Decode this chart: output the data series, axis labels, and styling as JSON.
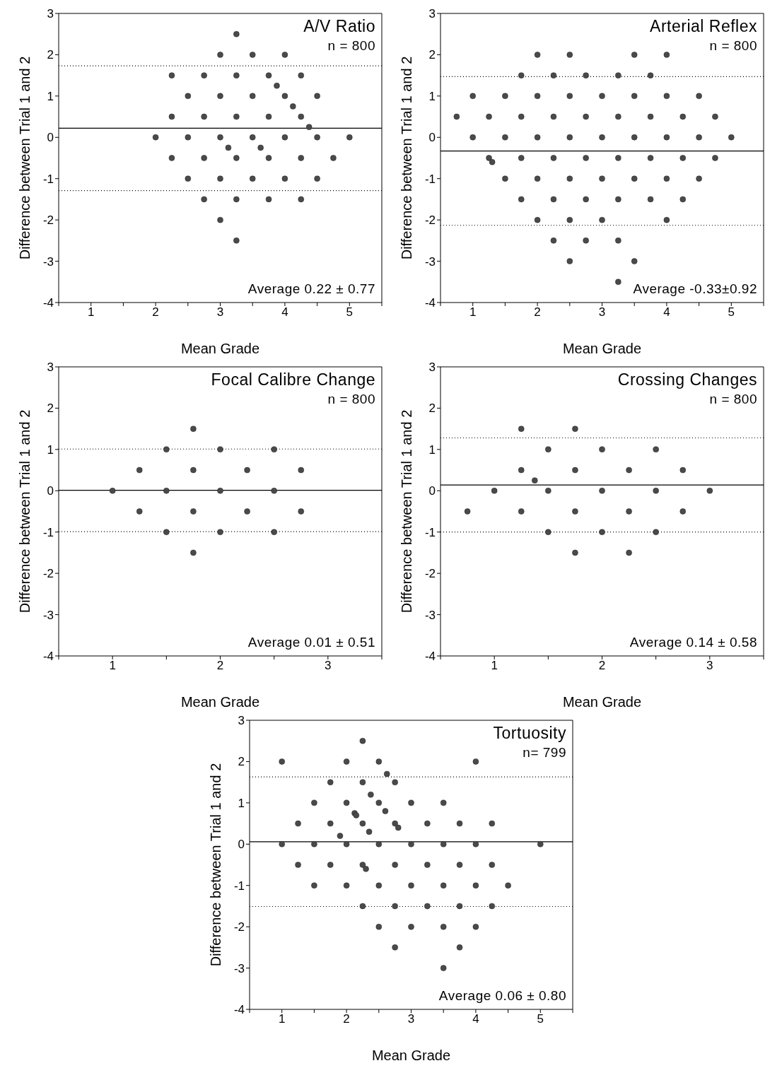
{
  "chart_data": [
    {
      "type": "scatter",
      "title": "A/V Ratio",
      "xlabel": "Mean Grade",
      "ylabel": "Difference between Trial 1 and 2",
      "annotations": [
        "n = 800",
        "Average 0.22 ± 0.77"
      ],
      "marker": "circle",
      "grid": false,
      "legend": false,
      "xlim": [
        0.5,
        5.5
      ],
      "xticks": [
        {
          "value": 0.5,
          "label": null
        },
        1,
        {
          "value": 1.5,
          "label": null
        },
        2,
        {
          "value": 2.5,
          "label": null
        },
        3,
        {
          "value": 3.5,
          "label": null
        },
        4,
        {
          "value": 4.5,
          "label": null
        },
        5,
        {
          "value": 5.5,
          "label": null
        }
      ],
      "ylim": [
        -4,
        3
      ],
      "yticks": [
        -4,
        -3,
        -2,
        -1,
        0,
        1,
        2,
        3
      ],
      "ref_lines": [
        {
          "axis": "y",
          "value": 0.22,
          "line_style": "solid",
          "color": "#000000"
        },
        {
          "axis": "y",
          "value": 1.73,
          "line_style": "dotted",
          "color": "#000000"
        },
        {
          "axis": "y",
          "value": -1.29,
          "line_style": "dotted",
          "color": "#000000"
        }
      ],
      "series": [
        {
          "color": "#4a4a4a",
          "x": [
            3.25,
            3,
            3.5,
            4,
            2.25,
            2.75,
            3.25,
            3.75,
            4.25,
            3.875,
            2.5,
            3,
            3.5,
            4,
            4.5,
            4.125,
            2.25,
            2.75,
            3.25,
            3.75,
            4.25,
            4.375,
            2,
            2.5,
            3,
            3.5,
            4,
            4.5,
            5,
            3.125,
            3.625,
            2.25,
            2.75,
            3.25,
            3.75,
            4.25,
            4.75,
            2.5,
            3,
            3.5,
            4,
            4.5,
            2.75,
            3.25,
            3.75,
            4.25,
            3,
            3.25
          ],
          "values": [
            2.5,
            2,
            2,
            2,
            1.5,
            1.5,
            1.5,
            1.5,
            1.5,
            1.25,
            1,
            1,
            1,
            1,
            1,
            0.75,
            0.5,
            0.5,
            0.5,
            0.5,
            0.5,
            0.25,
            0,
            0,
            0,
            0,
            0,
            0,
            0,
            -0.25,
            -0.25,
            -0.5,
            -0.5,
            -0.5,
            -0.5,
            -0.5,
            -0.5,
            -1,
            -1,
            -1,
            -1,
            -1,
            -1.5,
            -1.5,
            -1.5,
            -1.5,
            -2,
            -2.5
          ]
        }
      ]
    },
    {
      "type": "scatter",
      "title": "Arterial Reflex",
      "xlabel": "Mean Grade",
      "ylabel": "Difference between Trial 1 and 2",
      "annotations": [
        "n = 800",
        "Average -0.33±0.92"
      ],
      "marker": "circle",
      "grid": false,
      "legend": false,
      "xlim": [
        0.5,
        5.5
      ],
      "xticks": [
        {
          "value": 0.5,
          "label": null
        },
        1,
        {
          "value": 1.5,
          "label": null
        },
        2,
        {
          "value": 2.5,
          "label": null
        },
        3,
        {
          "value": 3.5,
          "label": null
        },
        4,
        {
          "value": 4.5,
          "label": null
        },
        5,
        {
          "value": 5.5,
          "label": null
        }
      ],
      "ylim": [
        -4,
        3
      ],
      "yticks": [
        -4,
        -3,
        -2,
        -1,
        0,
        1,
        2,
        3
      ],
      "ref_lines": [
        {
          "axis": "y",
          "value": -0.33,
          "line_style": "solid",
          "color": "#000000"
        },
        {
          "axis": "y",
          "value": 1.47,
          "line_style": "dotted",
          "color": "#000000"
        },
        {
          "axis": "y",
          "value": -2.13,
          "line_style": "dotted",
          "color": "#000000"
        }
      ],
      "series": [
        {
          "color": "#4a4a4a",
          "x": [
            2,
            2.5,
            3.5,
            4,
            1.75,
            2.25,
            2.75,
            3.25,
            3.75,
            1,
            1.5,
            2,
            2.5,
            3,
            3.5,
            4,
            4.5,
            0.75,
            1.25,
            1.75,
            2.25,
            2.75,
            3.25,
            3.75,
            4.25,
            4.75,
            1,
            1.5,
            2,
            2.5,
            3,
            3.5,
            4,
            4.5,
            5,
            1.25,
            1.3,
            1.75,
            2.25,
            2.75,
            3.25,
            3.75,
            4.25,
            4.75,
            1.5,
            2,
            2.5,
            3,
            3.5,
            4,
            4.5,
            1.75,
            2.25,
            2.75,
            3.25,
            3.75,
            4.25,
            2,
            2.5,
            3,
            4,
            2.25,
            2.75,
            3.25,
            2.5,
            3.5,
            3.25
          ],
          "values": [
            2,
            2,
            2,
            2,
            1.5,
            1.5,
            1.5,
            1.5,
            1.5,
            1,
            1,
            1,
            1,
            1,
            1,
            1,
            1,
            0.5,
            0.5,
            0.5,
            0.5,
            0.5,
            0.5,
            0.5,
            0.5,
            0.5,
            0,
            0,
            0,
            0,
            0,
            0,
            0,
            0,
            0,
            -0.5,
            -0.6,
            -0.5,
            -0.5,
            -0.5,
            -0.5,
            -0.5,
            -0.5,
            -0.5,
            -1,
            -1,
            -1,
            -1,
            -1,
            -1,
            -1,
            -1.5,
            -1.5,
            -1.5,
            -1.5,
            -1.5,
            -1.5,
            -2,
            -2,
            -2,
            -2,
            -2.5,
            -2.5,
            -2.5,
            -3,
            -3,
            -3.5
          ]
        }
      ]
    },
    {
      "type": "scatter",
      "title": "Focal Calibre Change",
      "xlabel": "Mean Grade",
      "ylabel": "Difference between Trial 1 and 2",
      "annotations": [
        "n = 800",
        "Average 0.01 ± 0.51"
      ],
      "marker": "circle",
      "grid": false,
      "legend": false,
      "xlim": [
        0.5,
        3.5
      ],
      "xticks": [
        {
          "value": 0.5,
          "label": null
        },
        1,
        {
          "value": 1.5,
          "label": null
        },
        2,
        {
          "value": 2.5,
          "label": null
        },
        3,
        {
          "value": 3.5,
          "label": null
        }
      ],
      "ylim": [
        -4,
        3
      ],
      "yticks": [
        -4,
        -3,
        -2,
        -1,
        0,
        1,
        2,
        3
      ],
      "ref_lines": [
        {
          "axis": "y",
          "value": 0.01,
          "line_style": "solid",
          "color": "#000000"
        },
        {
          "axis": "y",
          "value": 1.01,
          "line_style": "dotted",
          "color": "#000000"
        },
        {
          "axis": "y",
          "value": -0.99,
          "line_style": "dotted",
          "color": "#000000"
        }
      ],
      "series": [
        {
          "color": "#4a4a4a",
          "x": [
            1.75,
            1.5,
            2,
            2.5,
            1.25,
            1.75,
            2.25,
            2.75,
            1,
            1.5,
            2,
            2.5,
            1.25,
            1.75,
            2.25,
            2.75,
            1.5,
            2,
            2.5,
            1.75
          ],
          "values": [
            1.5,
            1,
            1,
            1,
            0.5,
            0.5,
            0.5,
            0.5,
            0,
            0,
            0,
            0,
            -0.5,
            -0.5,
            -0.5,
            -0.5,
            -1,
            -1,
            -1,
            -1.5
          ]
        }
      ]
    },
    {
      "type": "scatter",
      "title": "Crossing Changes",
      "xlabel": "Mean Grade",
      "ylabel": "Difference between Trial 1 and 2",
      "annotations": [
        "n = 800",
        "Average 0.14 ± 0.58"
      ],
      "marker": "circle",
      "grid": false,
      "legend": false,
      "xlim": [
        0.5,
        3.5
      ],
      "xticks": [
        {
          "value": 0.5,
          "label": null
        },
        1,
        {
          "value": 1.5,
          "label": null
        },
        2,
        {
          "value": 2.5,
          "label": null
        },
        3,
        {
          "value": 3.5,
          "label": null
        }
      ],
      "ylim": [
        -4,
        3
      ],
      "yticks": [
        -4,
        -3,
        -2,
        -1,
        0,
        1,
        2,
        3
      ],
      "ref_lines": [
        {
          "axis": "y",
          "value": 0.14,
          "line_style": "solid",
          "color": "#000000"
        },
        {
          "axis": "y",
          "value": 1.28,
          "line_style": "dotted",
          "color": "#000000"
        },
        {
          "axis": "y",
          "value": -1,
          "line_style": "dotted",
          "color": "#000000"
        }
      ],
      "series": [
        {
          "color": "#4a4a4a",
          "x": [
            1.25,
            1.75,
            1.5,
            2,
            2.5,
            1.25,
            1.75,
            2.25,
            2.75,
            1.375,
            1,
            1.5,
            2,
            2.5,
            3,
            0.75,
            1.25,
            1.75,
            2.25,
            2.75,
            1.5,
            2,
            2.5,
            1.75,
            2.25
          ],
          "values": [
            1.5,
            1.5,
            1,
            1,
            1,
            0.5,
            0.5,
            0.5,
            0.5,
            0.25,
            0,
            0,
            0,
            0,
            0,
            -0.5,
            -0.5,
            -0.5,
            -0.5,
            -0.5,
            -1,
            -1,
            -1,
            -1.5,
            -1.5
          ]
        }
      ]
    },
    {
      "type": "scatter",
      "title": "Tortuosity",
      "xlabel": "Mean Grade",
      "ylabel": "Difference between Trial 1 and 2",
      "annotations": [
        "n= 799",
        "Average 0.06 ± 0.80"
      ],
      "marker": "circle",
      "grid": false,
      "legend": false,
      "xlim": [
        0.5,
        5.5
      ],
      "xticks": [
        {
          "value": 0.5,
          "label": null
        },
        1,
        {
          "value": 1.5,
          "label": null
        },
        2,
        {
          "value": 2.5,
          "label": null
        },
        3,
        {
          "value": 3.5,
          "label": null
        },
        4,
        {
          "value": 4.5,
          "label": null
        },
        5,
        {
          "value": 5.5,
          "label": null
        }
      ],
      "ylim": [
        -4,
        3
      ],
      "yticks": [
        -4,
        -3,
        -2,
        -1,
        0,
        1,
        2,
        3
      ],
      "ref_lines": [
        {
          "axis": "y",
          "value": 0.06,
          "line_style": "solid",
          "color": "#000000"
        },
        {
          "axis": "y",
          "value": 1.63,
          "line_style": "dotted",
          "color": "#000000"
        },
        {
          "axis": "y",
          "value": -1.51,
          "line_style": "dotted",
          "color": "#000000"
        }
      ],
      "series": [
        {
          "color": "#4a4a4a",
          "x": [
            2.25,
            1,
            2,
            2.5,
            4,
            2.625,
            1.75,
            2.25,
            2.75,
            2.375,
            1.5,
            2,
            2.5,
            3,
            3.5,
            2.125,
            2.15,
            2.6,
            1.25,
            1.75,
            2.25,
            2.75,
            2.8,
            3.25,
            3.75,
            4.25,
            2.35,
            1.9,
            1,
            1.5,
            2,
            2.5,
            3,
            3.5,
            4,
            5,
            1.25,
            1.75,
            2.25,
            2.3,
            2.75,
            3.25,
            3.75,
            4.25,
            1.5,
            2,
            2.5,
            3,
            3.5,
            4,
            4.5,
            2.25,
            2.75,
            3.25,
            3.75,
            4.25,
            2.5,
            3,
            3.5,
            4,
            2.75,
            3.75,
            3.5
          ],
          "values": [
            2.5,
            2,
            2,
            2,
            2,
            1.7,
            1.5,
            1.5,
            1.5,
            1.2,
            1,
            1,
            1,
            1,
            1,
            0.75,
            0.7,
            0.8,
            0.5,
            0.5,
            0.5,
            0.5,
            0.4,
            0.5,
            0.5,
            0.5,
            0.3,
            0.2,
            0,
            0,
            0,
            0,
            0,
            0,
            0,
            0,
            -0.5,
            -0.5,
            -0.5,
            -0.6,
            -0.5,
            -0.5,
            -0.5,
            -0.5,
            -1,
            -1,
            -1,
            -1,
            -1,
            -1,
            -1,
            -1.5,
            -1.5,
            -1.5,
            -1.5,
            -1.5,
            -2,
            -2,
            -2,
            -2,
            -2.5,
            -2.5,
            -3
          ]
        }
      ]
    }
  ]
}
